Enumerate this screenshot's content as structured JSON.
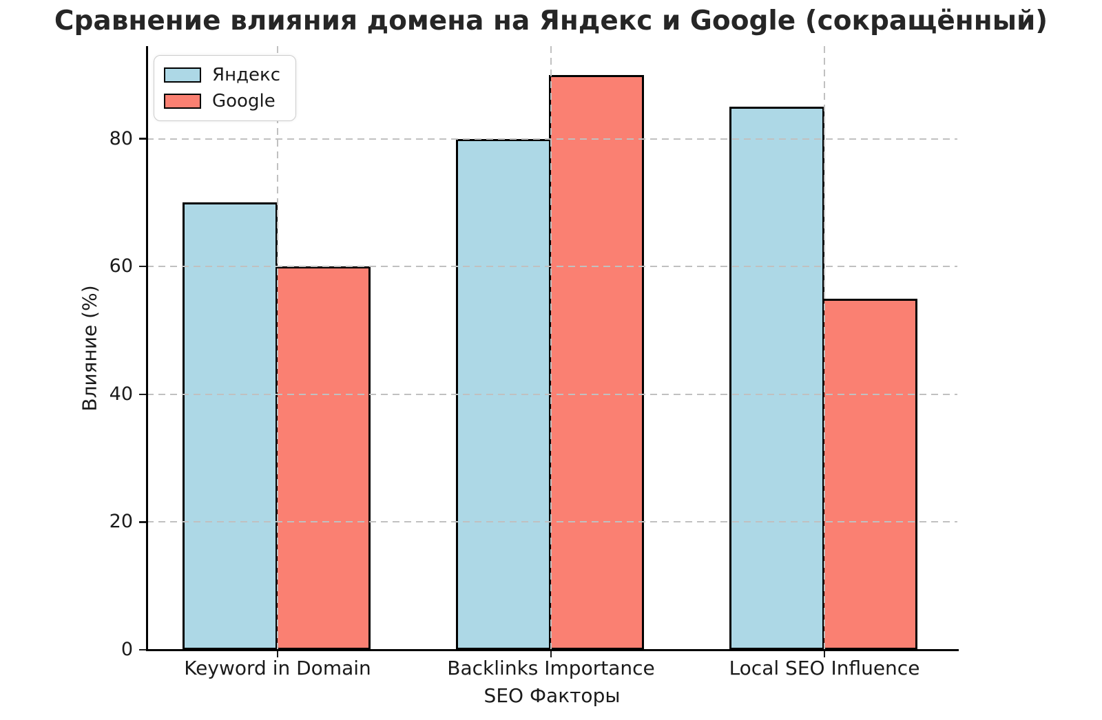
{
  "figure": {
    "background": "#ffffff"
  },
  "title": "Сравнение влияния домена на Яндекс и Google (сокращённый)",
  "axes": {
    "xlabel": "SEO Факторы",
    "ylabel": "Влияние (%)"
  },
  "legend": {
    "position": "upper left",
    "entries": [
      {
        "id": "yandex",
        "label": "Яндекс",
        "color": "#ADD8E6"
      },
      {
        "id": "google",
        "label": "Google",
        "color": "#FA8072"
      }
    ]
  },
  "chart_data": {
    "type": "bar",
    "title": "Сравнение влияния домена на Яндекс и Google (сокращённый)",
    "xlabel": "SEO Факторы",
    "ylabel": "Влияние (%)",
    "categories": [
      "Keyword in Domain",
      "Backlinks Importance",
      "Local SEO Influence"
    ],
    "series": [
      {
        "name": "Яндекс",
        "color": "#ADD8E6",
        "values": [
          70,
          80,
          85
        ]
      },
      {
        "name": "Google",
        "color": "#FA8072",
        "values": [
          60,
          90,
          55
        ]
      }
    ],
    "ylim": [
      0,
      94.5
    ],
    "yticks": [
      0,
      20,
      40,
      60,
      80
    ],
    "grid": true,
    "grid_style": "dashed",
    "grid_color": "#c0c0c0",
    "bar_edge_color": "#000000",
    "legend_position": "upper left"
  }
}
